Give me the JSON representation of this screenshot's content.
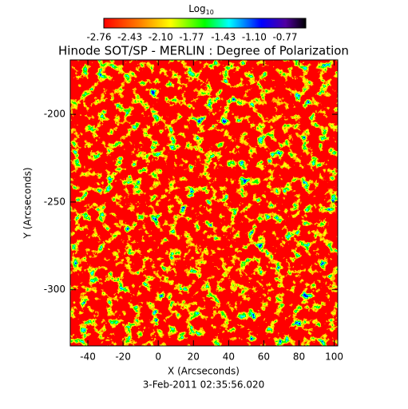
{
  "chart_data": {
    "type": "heatmap",
    "title": "Hinode SOT/SP - MERLIN : Degree of Polarization",
    "colorbar_label": "Log",
    "colorbar_label_sub": "10",
    "colorbar_lim": [
      -2.76,
      -0.77
    ],
    "colorbar_ticks": [
      -2.76,
      -2.43,
      {
        "value": -2.1,
        "label": "-2.10"
      },
      -1.77,
      -1.43,
      {
        "value": -1.1,
        "label": "-1.10"
      },
      -0.77
    ],
    "x_label": "X (Arcseconds)",
    "y_label": "Y (Arcseconds)",
    "date": "3-Feb-2011 02:35:56.020",
    "xlim": [
      -50,
      102
    ],
    "xticks": [
      -40,
      -20,
      0,
      20,
      40,
      60,
      80,
      100
    ],
    "ylim": [
      -332,
      -169
    ],
    "yticks": [
      -300,
      -250,
      -200
    ]
  }
}
